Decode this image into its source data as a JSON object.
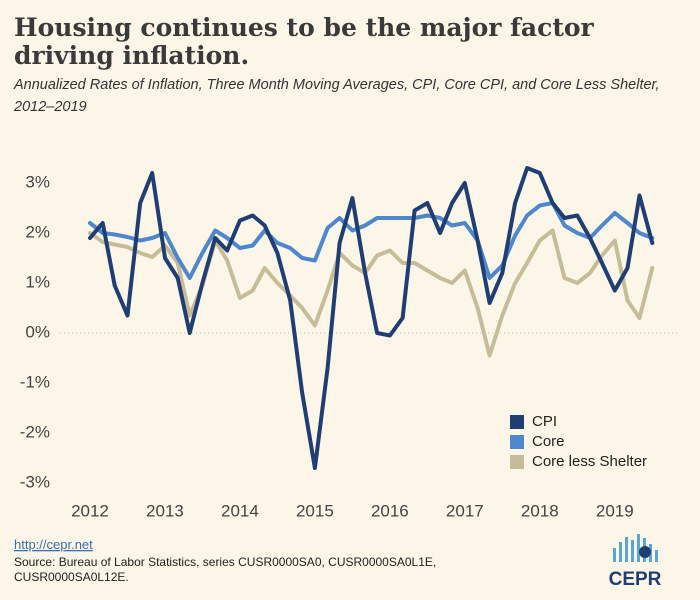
{
  "chart_data": {
    "type": "line",
    "title": "Housing continues to be the major factor driving inflation.",
    "subtitle": "Annualized Rates of Inflation, Three Month Moving Averages, CPI, Core CPI, and Core Less Shelter, 2012–2019",
    "x": [
      2012,
      2012.17,
      2012.33,
      2012.5,
      2012.67,
      2012.83,
      2013,
      2013.17,
      2013.33,
      2013.5,
      2013.67,
      2013.83,
      2014,
      2014.17,
      2014.33,
      2014.5,
      2014.67,
      2014.83,
      2015,
      2015.17,
      2015.33,
      2015.5,
      2015.67,
      2015.83,
      2016,
      2016.17,
      2016.33,
      2016.5,
      2016.67,
      2016.83,
      2017,
      2017.17,
      2017.33,
      2017.5,
      2017.67,
      2017.83,
      2018,
      2018.17,
      2018.33,
      2018.5,
      2018.67,
      2018.83,
      2019,
      2019.17,
      2019.33,
      2019.5
    ],
    "series": [
      {
        "name": "CPI",
        "color": "#1f3f74",
        "values": [
          1.9,
          2.2,
          0.95,
          0.35,
          2.6,
          3.2,
          1.5,
          1.1,
          0.0,
          1.0,
          1.9,
          1.65,
          2.25,
          2.35,
          2.15,
          1.6,
          0.65,
          -1.2,
          -2.7,
          -0.7,
          1.8,
          2.7,
          1.2,
          0.0,
          -0.05,
          0.3,
          2.45,
          2.6,
          2.0,
          2.6,
          3.0,
          1.85,
          0.6,
          1.2,
          2.6,
          3.3,
          3.2,
          2.6,
          2.3,
          2.35,
          1.9,
          1.4,
          0.85,
          1.3,
          2.75,
          1.8
        ]
      },
      {
        "name": "Core",
        "color": "#4f87cc",
        "values": [
          2.2,
          2.0,
          1.97,
          1.92,
          1.85,
          1.9,
          2.0,
          1.5,
          1.1,
          1.6,
          2.05,
          1.9,
          1.7,
          1.75,
          2.05,
          1.8,
          1.7,
          1.5,
          1.45,
          2.1,
          2.3,
          2.05,
          2.15,
          2.3,
          2.3,
          2.3,
          2.3,
          2.35,
          2.3,
          2.15,
          2.2,
          1.85,
          1.1,
          1.35,
          1.95,
          2.35,
          2.55,
          2.6,
          2.15,
          2.0,
          1.9,
          2.15,
          2.4,
          2.2,
          2.0,
          1.9
        ]
      },
      {
        "name": "Core less Shelter",
        "color": "#c7bc98",
        "values": [
          2.0,
          1.82,
          1.77,
          1.72,
          1.6,
          1.52,
          1.75,
          1.4,
          0.35,
          0.95,
          1.85,
          1.45,
          0.7,
          0.85,
          1.3,
          1.0,
          0.75,
          0.5,
          0.15,
          0.85,
          1.6,
          1.35,
          1.2,
          1.55,
          1.65,
          1.4,
          1.4,
          1.25,
          1.1,
          1.0,
          1.25,
          0.5,
          -0.45,
          0.35,
          1.0,
          1.4,
          1.85,
          2.05,
          1.1,
          1.0,
          1.2,
          1.55,
          1.85,
          0.65,
          0.3,
          1.3
        ]
      }
    ],
    "xlim": [
      2011.6,
      2019.87
    ],
    "xticks": [
      2012,
      2013,
      2014,
      2015,
      2016,
      2017,
      2018,
      2019
    ],
    "ylim": [
      -3.3,
      3.7
    ],
    "yticks": [
      {
        "value": 3,
        "label": "3%"
      },
      {
        "value": 2,
        "label": "2%"
      },
      {
        "value": 1,
        "label": "1%"
      },
      {
        "value": 0,
        "label": "0%"
      },
      {
        "value": -1,
        "label": "-1%"
      },
      {
        "value": -2,
        "label": "-2%"
      },
      {
        "value": -3,
        "label": "-3%"
      }
    ],
    "zero_line": true,
    "legend": "lower right",
    "footer": {
      "link": "http://cepr.net",
      "source_lines": [
        "Source: Bureau of Labor Statistics, series CUSR0000SA0, CUSR0000SA0L1E,",
        "CUSR0000SA0L12E."
      ],
      "logo": "CEPR"
    }
  }
}
